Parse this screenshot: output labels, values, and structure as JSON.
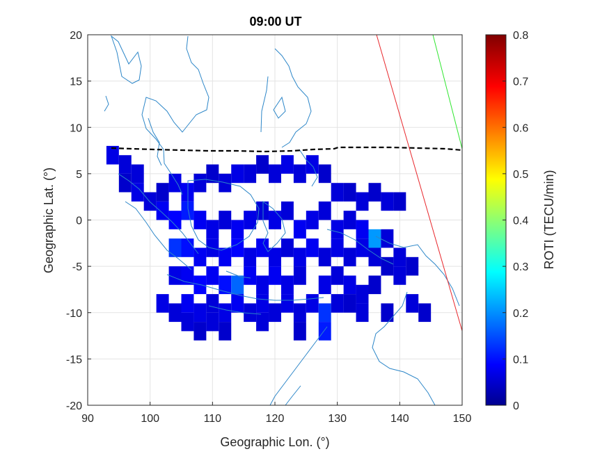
{
  "chart_data": {
    "type": "heatmap",
    "title": "09:00 UT",
    "xlabel": "Geographic Lon. (°)",
    "ylabel": "Geographic Lat. (°)",
    "xlim": [
      90,
      150
    ],
    "ylim": [
      -20,
      20
    ],
    "xticks": [
      "90",
      "100",
      "110",
      "120",
      "130",
      "140",
      "150"
    ],
    "yticks": [
      "20",
      "15",
      "10",
      "5",
      "0",
      "-5",
      "-10",
      "-15",
      "-20"
    ],
    "grid": true,
    "colorbar": {
      "label": "ROTI (TECU/min)",
      "range": [
        0,
        0.8
      ],
      "ticks": [
        "0.8",
        "0.7",
        "0.6",
        "0.5",
        "0.4",
        "0.3",
        "0.2",
        "0.1",
        "0"
      ],
      "colormap": "jet"
    },
    "roti_cells": [
      [
        94,
        7,
        0.08
      ],
      [
        96,
        6,
        0.07
      ],
      [
        98,
        5,
        0.07
      ],
      [
        96,
        4,
        0.06
      ],
      [
        98,
        3,
        0.08
      ],
      [
        100,
        2,
        0.07
      ],
      [
        102,
        3,
        0.06
      ],
      [
        104,
        4,
        0.08
      ],
      [
        106,
        3,
        0.09
      ],
      [
        108,
        4,
        0.07
      ],
      [
        110,
        5,
        0.06
      ],
      [
        112,
        4,
        0.07
      ],
      [
        114,
        5,
        0.08
      ],
      [
        116,
        5,
        0.07
      ],
      [
        118,
        6,
        0.06
      ],
      [
        120,
        5,
        0.07
      ],
      [
        122,
        6,
        0.08
      ],
      [
        124,
        5,
        0.07
      ],
      [
        126,
        6,
        0.08
      ],
      [
        128,
        5,
        0.06
      ],
      [
        130,
        3,
        0.07
      ],
      [
        132,
        3,
        0.06
      ],
      [
        134,
        2,
        0.07
      ],
      [
        136,
        3,
        0.06
      ],
      [
        138,
        2,
        0.07
      ],
      [
        140,
        2,
        0.06
      ],
      [
        102,
        1,
        0.09
      ],
      [
        104,
        0,
        0.1
      ],
      [
        106,
        1,
        0.12
      ],
      [
        108,
        0,
        0.09
      ],
      [
        110,
        -1,
        0.08
      ],
      [
        112,
        0,
        0.07
      ],
      [
        114,
        -1,
        0.09
      ],
      [
        116,
        0,
        0.08
      ],
      [
        118,
        1,
        0.07
      ],
      [
        120,
        0,
        0.08
      ],
      [
        122,
        1,
        0.07
      ],
      [
        124,
        -1,
        0.09
      ],
      [
        126,
        0,
        0.08
      ],
      [
        128,
        1,
        0.07
      ],
      [
        130,
        -1,
        0.08
      ],
      [
        132,
        0,
        0.07
      ],
      [
        134,
        -1,
        0.09
      ],
      [
        136,
        -2,
        0.22
      ],
      [
        138,
        -2,
        0.07
      ],
      [
        104,
        -3,
        0.14
      ],
      [
        106,
        -3,
        0.11
      ],
      [
        108,
        -4,
        0.09
      ],
      [
        110,
        -3,
        0.08
      ],
      [
        112,
        -4,
        0.09
      ],
      [
        114,
        -3,
        0.1
      ],
      [
        116,
        -4,
        0.08
      ],
      [
        118,
        -3,
        0.09
      ],
      [
        120,
        -4,
        0.08
      ],
      [
        122,
        -3,
        0.07
      ],
      [
        124,
        -4,
        0.08
      ],
      [
        126,
        -3,
        0.09
      ],
      [
        128,
        -4,
        0.07
      ],
      [
        130,
        -3,
        0.08
      ],
      [
        132,
        -4,
        0.07
      ],
      [
        134,
        -3,
        0.08
      ],
      [
        136,
        -4,
        0.07
      ],
      [
        138,
        -5,
        0.06
      ],
      [
        140,
        -4,
        0.07
      ],
      [
        142,
        -5,
        0.06
      ],
      [
        104,
        -6,
        0.08
      ],
      [
        106,
        -6,
        0.09
      ],
      [
        108,
        -7,
        0.1
      ],
      [
        110,
        -6,
        0.09
      ],
      [
        112,
        -7,
        0.11
      ],
      [
        114,
        -7,
        0.18
      ],
      [
        116,
        -6,
        0.09
      ],
      [
        118,
        -7,
        0.08
      ],
      [
        120,
        -6,
        0.09
      ],
      [
        122,
        -7,
        0.08
      ],
      [
        124,
        -6,
        0.07
      ],
      [
        128,
        -7,
        0.08
      ],
      [
        130,
        -6,
        0.07
      ],
      [
        132,
        -7,
        0.08
      ],
      [
        134,
        -8,
        0.07
      ],
      [
        136,
        -7,
        0.06
      ],
      [
        140,
        -6,
        0.07
      ],
      [
        102,
        -9,
        0.08
      ],
      [
        104,
        -10,
        0.07
      ],
      [
        106,
        -9,
        0.09
      ],
      [
        108,
        -10,
        0.08
      ],
      [
        110,
        -9,
        0.07
      ],
      [
        112,
        -10,
        0.08
      ],
      [
        114,
        -9,
        0.09
      ],
      [
        116,
        -10,
        0.07
      ],
      [
        118,
        -9,
        0.08
      ],
      [
        120,
        -10,
        0.07
      ],
      [
        122,
        -9,
        0.08
      ],
      [
        124,
        -10,
        0.07
      ],
      [
        126,
        -9,
        0.08
      ],
      [
        128,
        -10,
        0.14
      ],
      [
        130,
        -9,
        0.07
      ],
      [
        132,
        -9,
        0.06
      ],
      [
        134,
        -10,
        0.07
      ],
      [
        138,
        -10,
        0.06
      ],
      [
        142,
        -9,
        0.07
      ],
      [
        144,
        -10,
        0.06
      ],
      [
        106,
        -11,
        0.07
      ],
      [
        108,
        -12,
        0.06
      ],
      [
        110,
        -11,
        0.07
      ],
      [
        112,
        -12,
        0.06
      ],
      [
        118,
        -11,
        0.07
      ],
      [
        124,
        -12,
        0.06
      ],
      [
        128,
        -12,
        0.12
      ]
    ],
    "overlays": [
      {
        "name": "magnetic-equator",
        "style": "black-dashed"
      },
      {
        "name": "red-line",
        "color": "#e8262b"
      },
      {
        "name": "green-line",
        "color": "#2ee62e"
      },
      {
        "name": "coastlines",
        "color": "#2c86c8"
      }
    ]
  }
}
